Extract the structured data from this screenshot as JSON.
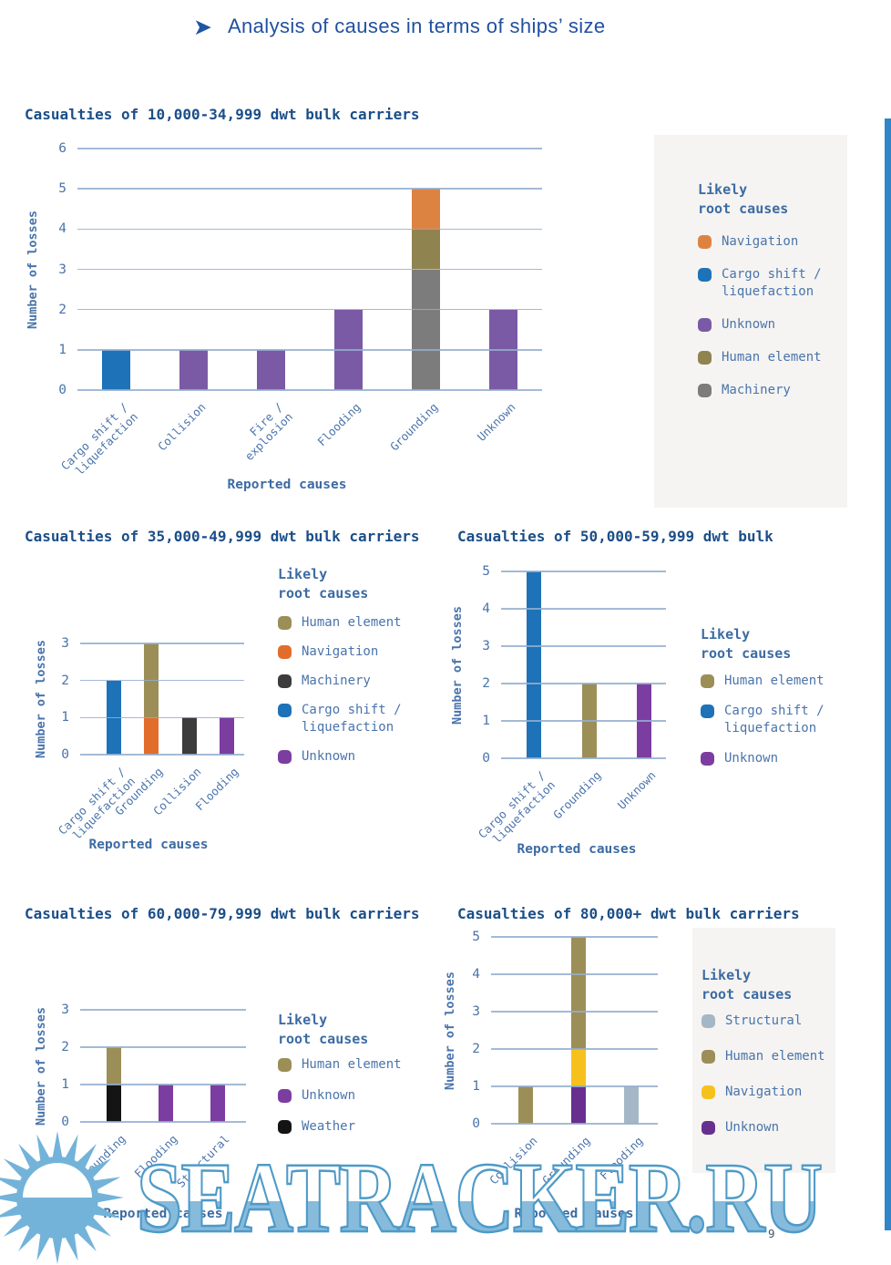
{
  "page": {
    "header": {
      "arrow": "➤",
      "title": "Analysis of causes in terms of ships’ size"
    },
    "page_number": "9",
    "watermark": {
      "text": "SEATRACKER.RU",
      "outline_color": "#4e9ac8",
      "fill_color": "#86bbdc",
      "sun_color": "#73b3d9"
    },
    "accent_stripe_color": "#2e86c8"
  },
  "colors": {
    "heading_blue": "#2150a0",
    "chart_title_navy": "#1b4e88",
    "axis_text_blue": "#4a74ab",
    "axis_label_blue": "#3c6ba3",
    "gridline_blue": "#94aed0",
    "legend_box_bg": "#f5f4f2"
  },
  "chart_data": [
    {
      "type": "bar",
      "title": "Casualties of 10,000-34,999 dwt bulk carriers",
      "xlabel": "Reported causes",
      "ylabel": "Number of losses",
      "ylim": [
        0,
        6
      ],
      "yticks": [
        0,
        1,
        2,
        3,
        4,
        5,
        6
      ],
      "grid": true,
      "categories": [
        "Cargo shift /\nliquefaction",
        "Collision",
        "Fire /\nexplosion",
        "Flooding",
        "Grounding",
        "Unknown"
      ],
      "bars": [
        {
          "category": "Cargo shift /\nliquefaction",
          "segments": [
            {
              "cause": "Cargo shift / liquefaction",
              "value": 1,
              "color": "#1d72b8"
            }
          ]
        },
        {
          "category": "Collision",
          "segments": [
            {
              "cause": "Unknown",
              "value": 1,
              "color": "#7a5aa4"
            }
          ]
        },
        {
          "category": "Fire /\nexplosion",
          "segments": [
            {
              "cause": "Unknown",
              "value": 1,
              "color": "#7a5aa4"
            }
          ]
        },
        {
          "category": "Flooding",
          "segments": [
            {
              "cause": "Unknown",
              "value": 2,
              "color": "#7a5aa4"
            }
          ]
        },
        {
          "category": "Grounding",
          "segments": [
            {
              "cause": "Machinery",
              "value": 3,
              "color": "#7c7c7c"
            },
            {
              "cause": "Human element",
              "value": 1,
              "color": "#8f8350"
            },
            {
              "cause": "Navigation",
              "value": 1,
              "color": "#dd8342"
            }
          ]
        },
        {
          "category": "Unknown",
          "segments": [
            {
              "cause": "Unknown",
              "value": 2,
              "color": "#7a5aa4"
            }
          ]
        }
      ],
      "legend": {
        "title": "Likely\nroot causes",
        "position": "right",
        "boxed": true,
        "items": [
          {
            "label": "Navigation",
            "color": "#dd8342"
          },
          {
            "label": "Cargo shift /\nliquefaction",
            "color": "#1d72b8"
          },
          {
            "label": "Unknown",
            "color": "#7a5aa4"
          },
          {
            "label": "Human element",
            "color": "#8f8350"
          },
          {
            "label": "Machinery",
            "color": "#7c7c7c"
          }
        ]
      }
    },
    {
      "type": "bar",
      "title": "Casualties of 35,000-49,999 dwt bulk carriers",
      "xlabel": "Reported causes",
      "ylabel": "Number of losses",
      "ylim": [
        0,
        3
      ],
      "yticks": [
        0,
        1,
        2,
        3
      ],
      "grid": true,
      "categories": [
        "Cargo shift /\nliquefaction",
        "Grounding",
        "Collision",
        "Flooding"
      ],
      "bars": [
        {
          "category": "Cargo shift /\nliquefaction",
          "segments": [
            {
              "cause": "Cargo shift / liquefaction",
              "value": 2,
              "color": "#1d72b8"
            }
          ]
        },
        {
          "category": "Grounding",
          "segments": [
            {
              "cause": "Navigation",
              "value": 1,
              "color": "#e26d2b"
            },
            {
              "cause": "Human element",
              "value": 2,
              "color": "#9c8e57"
            }
          ]
        },
        {
          "category": "Collision",
          "segments": [
            {
              "cause": "Machinery",
              "value": 1,
              "color": "#3c3c3c"
            }
          ]
        },
        {
          "category": "Flooding",
          "segments": [
            {
              "cause": "Unknown",
              "value": 1,
              "color": "#7c3da1"
            }
          ]
        }
      ],
      "legend": {
        "title": "Likely\nroot causes",
        "position": "right",
        "boxed": false,
        "items": [
          {
            "label": "Human element",
            "color": "#9c8e57"
          },
          {
            "label": "Navigation",
            "color": "#e26d2b"
          },
          {
            "label": "Machinery",
            "color": "#3c3c3c"
          },
          {
            "label": "Cargo shift /\nliquefaction",
            "color": "#1d72b8"
          },
          {
            "label": "Unknown",
            "color": "#7c3da1"
          }
        ]
      }
    },
    {
      "type": "bar",
      "title": "Casualties of 50,000-59,999 dwt bulk",
      "xlabel": "Reported causes",
      "ylabel": "Number of losses",
      "ylim": [
        0,
        5
      ],
      "yticks": [
        0,
        1,
        2,
        3,
        4,
        5
      ],
      "grid": true,
      "categories": [
        "Cargo shift /\nliquefaction",
        "Grounding",
        "Unknown"
      ],
      "bars": [
        {
          "category": "Cargo shift /\nliquefaction",
          "segments": [
            {
              "cause": "Cargo shift / liquefaction",
              "value": 5,
              "color": "#1d72b8"
            }
          ]
        },
        {
          "category": "Grounding",
          "segments": [
            {
              "cause": "Human element",
              "value": 2,
              "color": "#9c8e57"
            }
          ]
        },
        {
          "category": "Unknown",
          "segments": [
            {
              "cause": "Unknown",
              "value": 2,
              "color": "#7c3da1"
            }
          ]
        }
      ],
      "legend": {
        "title": "Likely\nroot causes",
        "position": "right",
        "boxed": false,
        "items": [
          {
            "label": "Human element",
            "color": "#9c8e57"
          },
          {
            "label": "Cargo shift /\nliquefaction",
            "color": "#1d72b8"
          },
          {
            "label": "Unknown",
            "color": "#7c3da1"
          }
        ]
      }
    },
    {
      "type": "bar",
      "title": "Casualties of 60,000-79,999 dwt bulk carriers",
      "xlabel": "Reported causes",
      "ylabel": "Number of losses",
      "ylim": [
        0,
        3
      ],
      "yticks": [
        0,
        1,
        2,
        3
      ],
      "grid": true,
      "categories": [
        "Grounding",
        "Flooding",
        "Structural"
      ],
      "bars": [
        {
          "category": "Grounding",
          "segments": [
            {
              "cause": "Weather",
              "value": 1,
              "color": "#141414"
            },
            {
              "cause": "Human element",
              "value": 1,
              "color": "#9c8e57"
            }
          ]
        },
        {
          "category": "Flooding",
          "segments": [
            {
              "cause": "Unknown",
              "value": 1,
              "color": "#7c3da1"
            }
          ]
        },
        {
          "category": "Structural",
          "segments": [
            {
              "cause": "Unknown",
              "value": 1,
              "color": "#7c3da1"
            }
          ]
        }
      ],
      "legend": {
        "title": "Likely\nroot causes",
        "position": "right",
        "boxed": false,
        "items": [
          {
            "label": "Human element",
            "color": "#9c8e57"
          },
          {
            "label": "Unknown",
            "color": "#7c3da1"
          },
          {
            "label": "Weather",
            "color": "#141414"
          }
        ]
      }
    },
    {
      "type": "bar",
      "title": "Casualties of 80,000+ dwt bulk carriers",
      "xlabel": "Reported causes",
      "ylabel": "Number of losses",
      "ylim": [
        0,
        5
      ],
      "yticks": [
        0,
        1,
        2,
        3,
        4,
        5
      ],
      "grid": true,
      "categories": [
        "Collision",
        "Grounding",
        "Flooding"
      ],
      "bars": [
        {
          "category": "Collision",
          "segments": [
            {
              "cause": "Human element",
              "value": 1,
              "color": "#9c8e57"
            }
          ]
        },
        {
          "category": "Grounding",
          "segments": [
            {
              "cause": "Unknown",
              "value": 1,
              "color": "#67308f"
            },
            {
              "cause": "Navigation",
              "value": 1,
              "color": "#f6c11d"
            },
            {
              "cause": "Human element",
              "value": 3,
              "color": "#9c8e57"
            }
          ]
        },
        {
          "category": "Flooding",
          "segments": [
            {
              "cause": "Structural",
              "value": 1,
              "color": "#a5b7c6"
            }
          ]
        }
      ],
      "legend": {
        "title": "Likely\nroot causes",
        "position": "right",
        "boxed": true,
        "items": [
          {
            "label": "Structural",
            "color": "#a5b7c6"
          },
          {
            "label": "Human element",
            "color": "#9c8e57"
          },
          {
            "label": "Navigation",
            "color": "#f6c11d"
          },
          {
            "label": "Unknown",
            "color": "#67308f"
          }
        ]
      }
    }
  ]
}
